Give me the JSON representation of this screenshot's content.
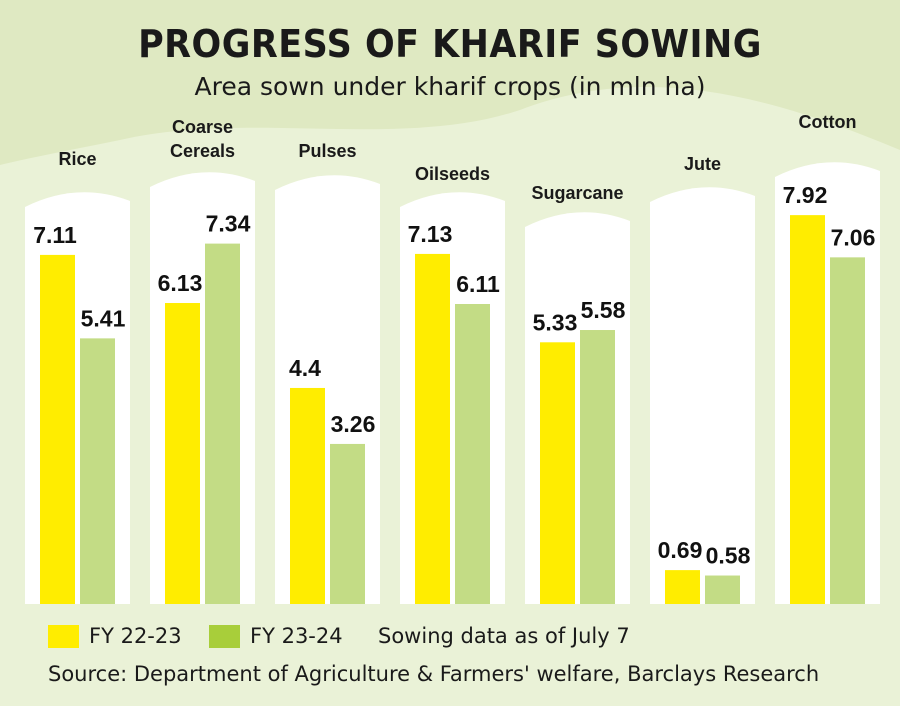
{
  "title": "PROGRESS OF KHARIF SOWING",
  "subtitle": "Area sown under kharif crops (in mln ha)",
  "legend": {
    "series1": "FY 22-23",
    "series2": "FY 23-24",
    "note": "Sowing data as of July 7"
  },
  "source": "Source: Department of Agriculture & Farmers' welfare, Barclays Research",
  "colors": {
    "series1": "#ffed00",
    "series2": "#c3dc85",
    "legend2": "#a8ce3a",
    "card": "#ffffff",
    "background": "#eaf2d7"
  },
  "chart_data": {
    "type": "bar",
    "title": "PROGRESS OF KHARIF SOWING",
    "subtitle": "Area sown under kharif crops (in mln ha)",
    "categories": [
      "Rice",
      "Coarse Cereals",
      "Pulses",
      "Oilseeds",
      "Sugarcane",
      "Jute",
      "Cotton"
    ],
    "series": [
      {
        "name": "FY 22-23",
        "values": [
          7.11,
          6.13,
          4.4,
          7.13,
          5.33,
          0.69,
          7.92
        ]
      },
      {
        "name": "FY 23-24",
        "values": [
          5.41,
          7.34,
          3.26,
          6.11,
          5.58,
          0.58,
          7.06
        ]
      }
    ],
    "value_labels": [
      [
        "7.11",
        "6.13",
        "4.4",
        "7.13",
        "5.33",
        "0.69",
        "7.92"
      ],
      [
        "5.41",
        "7.34",
        "3.26",
        "6.11",
        "5.58",
        "0.58",
        "7.06"
      ]
    ],
    "ylim": [
      0,
      8
    ],
    "xlabel": "",
    "ylabel": "",
    "grid": false,
    "legend_position": "bottom-left"
  }
}
